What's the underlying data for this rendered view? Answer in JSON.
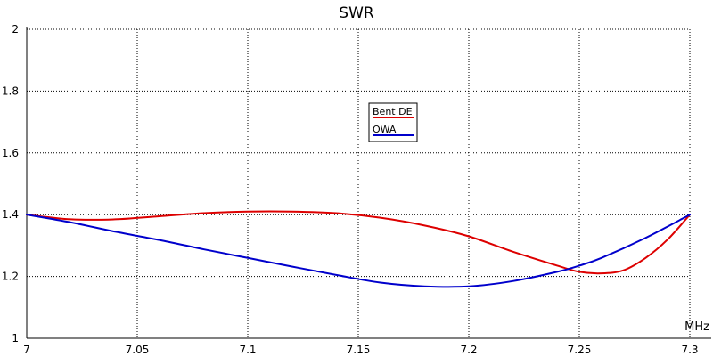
{
  "chart_data": {
    "type": "line",
    "title": "SWR",
    "xlabel": "MHz",
    "ylabel": "",
    "xlim": [
      7.0,
      7.3
    ],
    "ylim": [
      1.0,
      2.0
    ],
    "x_ticks": [
      7,
      7.05,
      7.1,
      7.15,
      7.2,
      7.25,
      7.3
    ],
    "x_tick_labels": [
      "7",
      "7.05",
      "7.1",
      "7.15",
      "7.2",
      "7.25",
      "7.3"
    ],
    "y_ticks": [
      1,
      1.2,
      1.4,
      1.6,
      1.8,
      2
    ],
    "y_tick_labels": [
      "1",
      "1.2",
      "1.4",
      "1.6",
      "1.8",
      "2"
    ],
    "grid": true,
    "legend_position": "upper-center",
    "series": [
      {
        "name": "Bent DE",
        "color": "#dd0000",
        "x": [
          7.0,
          7.02,
          7.04,
          7.06,
          7.08,
          7.1,
          7.12,
          7.14,
          7.16,
          7.18,
          7.2,
          7.22,
          7.24,
          7.25,
          7.26,
          7.27,
          7.28,
          7.29,
          7.3
        ],
        "y": [
          1.4,
          1.385,
          1.385,
          1.395,
          1.405,
          1.41,
          1.41,
          1.405,
          1.39,
          1.365,
          1.33,
          1.28,
          1.235,
          1.215,
          1.21,
          1.22,
          1.26,
          1.32,
          1.4
        ]
      },
      {
        "name": "OWA",
        "color": "#0000cc",
        "x": [
          7.0,
          7.02,
          7.04,
          7.06,
          7.08,
          7.1,
          7.12,
          7.14,
          7.16,
          7.18,
          7.2,
          7.22,
          7.24,
          7.25,
          7.26,
          7.28,
          7.3
        ],
        "y": [
          1.4,
          1.375,
          1.345,
          1.318,
          1.288,
          1.26,
          1.232,
          1.205,
          1.18,
          1.168,
          1.168,
          1.185,
          1.215,
          1.235,
          1.26,
          1.325,
          1.4
        ]
      }
    ]
  }
}
